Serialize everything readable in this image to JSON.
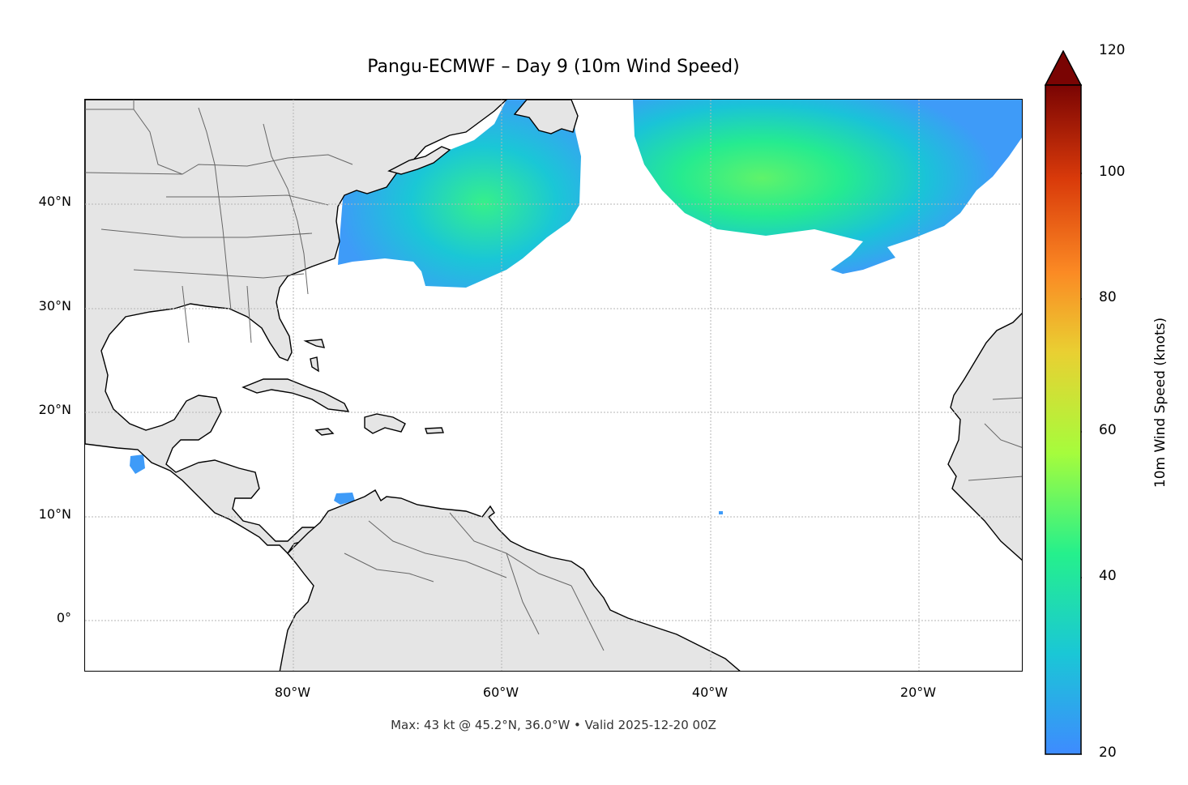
{
  "title": "Pangu-ECMWF – Day 9 (10m Wind Speed)",
  "footer": "Max: 43 kt @ 45.2°N, 36.0°W • Valid 2025-12-20 00Z",
  "axes": {
    "lat_labels": [
      "40°N",
      "30°N",
      "20°N",
      "10°N",
      "0°"
    ],
    "lon_labels": [
      "80°W",
      "60°W",
      "40°W",
      "20°W"
    ],
    "lon_range": [
      -100,
      -10
    ],
    "lat_range": [
      -5,
      50
    ],
    "grid": "dotted"
  },
  "colorbar": {
    "label": "10m Wind Speed (knots)",
    "ticks": [
      "120",
      "100",
      "80",
      "60",
      "40",
      "20"
    ],
    "range": [
      20,
      120
    ],
    "extend": "max",
    "colormap": "turbo",
    "colors": [
      "#3e8bff",
      "#1ac7d6",
      "#25f08c",
      "#a6fc3c",
      "#e9d032",
      "#fb8a24",
      "#d93a0a",
      "#7a0403"
    ]
  },
  "map": {
    "land_color": "#e5e5e5",
    "ocean_color": "#ffffff",
    "wind_max_kt": 43,
    "wind_max_location": "45.2°N, 36.0°W"
  }
}
